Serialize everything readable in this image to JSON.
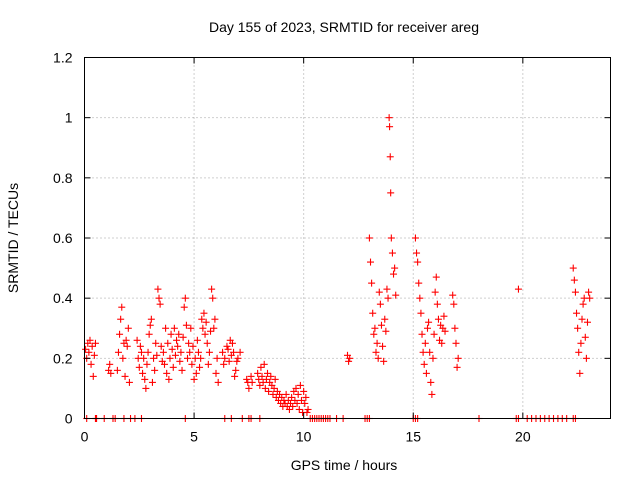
{
  "chart_data": {
    "type": "scatter",
    "title": "Day 155 of 2023, SRMTID for receiver areg",
    "xlabel": "GPS time / hours",
    "ylabel": "SRMTID / TECUs",
    "xlim": [
      0,
      24
    ],
    "ylim": [
      0,
      1.2
    ],
    "xticks": [
      0,
      5,
      10,
      15,
      20
    ],
    "xtick_labels": [
      "0",
      "5",
      "10",
      "15",
      "20"
    ],
    "yticks": [
      0,
      0.2,
      0.4,
      0.6,
      0.8,
      1.0,
      1.2
    ],
    "ytick_labels": [
      "0",
      "0.2",
      "0.4",
      "0.6",
      "0.8",
      "1",
      "1.2"
    ],
    "grid": true,
    "marker": "+",
    "color": "#ff0000",
    "series": [
      {
        "name": "SRMTID",
        "points": [
          [
            0.05,
            0.23
          ],
          [
            0.1,
            0.2
          ],
          [
            0.15,
            0.25
          ],
          [
            0.2,
            0.22
          ],
          [
            0.25,
            0.26
          ],
          [
            0.3,
            0.18
          ],
          [
            0.35,
            0.24
          ],
          [
            0.4,
            0.14
          ],
          [
            0.45,
            0.21
          ],
          [
            0.5,
            0.25
          ],
          [
            1.1,
            0.16
          ],
          [
            1.15,
            0.18
          ],
          [
            1.2,
            0.15
          ],
          [
            1.5,
            0.16
          ],
          [
            1.55,
            0.22
          ],
          [
            1.6,
            0.28
          ],
          [
            1.65,
            0.33
          ],
          [
            1.7,
            0.37
          ],
          [
            1.75,
            0.2
          ],
          [
            1.8,
            0.25
          ],
          [
            1.85,
            0.14
          ],
          [
            1.9,
            0.26
          ],
          [
            1.95,
            0.24
          ],
          [
            2.0,
            0.3
          ],
          [
            2.05,
            0.12
          ],
          [
            2.4,
            0.26
          ],
          [
            2.45,
            0.2
          ],
          [
            2.5,
            0.17
          ],
          [
            2.55,
            0.24
          ],
          [
            2.6,
            0.22
          ],
          [
            2.65,
            0.15
          ],
          [
            2.7,
            0.2
          ],
          [
            2.75,
            0.13
          ],
          [
            2.8,
            0.1
          ],
          [
            2.85,
            0.18
          ],
          [
            2.9,
            0.22
          ],
          [
            2.95,
            0.28
          ],
          [
            3.0,
            0.31
          ],
          [
            3.05,
            0.33
          ],
          [
            3.1,
            0.12
          ],
          [
            3.15,
            0.2
          ],
          [
            3.2,
            0.16
          ],
          [
            3.25,
            0.25
          ],
          [
            3.3,
            0.21
          ],
          [
            3.35,
            0.43
          ],
          [
            3.4,
            0.4
          ],
          [
            3.45,
            0.38
          ],
          [
            3.5,
            0.24
          ],
          [
            3.55,
            0.19
          ],
          [
            3.6,
            0.22
          ],
          [
            3.65,
            0.18
          ],
          [
            3.7,
            0.3
          ],
          [
            3.75,
            0.15
          ],
          [
            3.8,
            0.25
          ],
          [
            3.85,
            0.13
          ],
          [
            3.9,
            0.2
          ],
          [
            3.95,
            0.28
          ],
          [
            4.0,
            0.23
          ],
          [
            4.05,
            0.17
          ],
          [
            4.1,
            0.3
          ],
          [
            4.15,
            0.21
          ],
          [
            4.2,
            0.26
          ],
          [
            4.25,
            0.24
          ],
          [
            4.3,
            0.28
          ],
          [
            4.35,
            0.19
          ],
          [
            4.4,
            0.22
          ],
          [
            4.45,
            0.16
          ],
          [
            4.5,
            0.27
          ],
          [
            4.55,
            0.37
          ],
          [
            4.6,
            0.4
          ],
          [
            4.65,
            0.31
          ],
          [
            4.7,
            0.2
          ],
          [
            4.75,
            0.25
          ],
          [
            4.8,
            0.22
          ],
          [
            4.85,
            0.3
          ],
          [
            4.9,
            0.18
          ],
          [
            4.95,
            0.24
          ],
          [
            5.0,
            0.13
          ],
          [
            5.05,
            0.2
          ],
          [
            5.1,
            0.15
          ],
          [
            5.15,
            0.26
          ],
          [
            5.2,
            0.22
          ],
          [
            5.25,
            0.17
          ],
          [
            5.3,
            0.2
          ],
          [
            5.35,
            0.33
          ],
          [
            5.4,
            0.3
          ],
          [
            5.45,
            0.35
          ],
          [
            5.5,
            0.28
          ],
          [
            5.55,
            0.32
          ],
          [
            5.6,
            0.25
          ],
          [
            5.65,
            0.18
          ],
          [
            5.7,
            0.22
          ],
          [
            5.75,
            0.29
          ],
          [
            5.8,
            0.43
          ],
          [
            5.85,
            0.4
          ],
          [
            5.9,
            0.3
          ],
          [
            5.95,
            0.33
          ],
          [
            6.0,
            0.15
          ],
          [
            6.05,
            0.2
          ],
          [
            6.1,
            0.12
          ],
          [
            6.3,
            0.22
          ],
          [
            6.35,
            0.18
          ],
          [
            6.4,
            0.2
          ],
          [
            6.5,
            0.24
          ],
          [
            6.55,
            0.23
          ],
          [
            6.6,
            0.19
          ],
          [
            6.65,
            0.26
          ],
          [
            6.7,
            0.21
          ],
          [
            6.75,
            0.25
          ],
          [
            6.8,
            0.22
          ],
          [
            6.85,
            0.14
          ],
          [
            6.9,
            0.16
          ],
          [
            6.95,
            0.19
          ],
          [
            7.0,
            0.2
          ],
          [
            7.1,
            0.22
          ],
          [
            7.4,
            0.13
          ],
          [
            7.45,
            0.12
          ],
          [
            7.5,
            0.1
          ],
          [
            7.6,
            0.14
          ],
          [
            7.65,
            0.12
          ],
          [
            7.9,
            0.15
          ],
          [
            7.95,
            0.13
          ],
          [
            8.0,
            0.11
          ],
          [
            8.05,
            0.17
          ],
          [
            8.1,
            0.14
          ],
          [
            8.15,
            0.12
          ],
          [
            8.2,
            0.18
          ],
          [
            8.25,
            0.1
          ],
          [
            8.3,
            0.13
          ],
          [
            8.35,
            0.15
          ],
          [
            8.4,
            0.09
          ],
          [
            8.45,
            0.12
          ],
          [
            8.5,
            0.14
          ],
          [
            8.55,
            0.11
          ],
          [
            8.6,
            0.08
          ],
          [
            8.65,
            0.1
          ],
          [
            8.7,
            0.13
          ],
          [
            8.75,
            0.07
          ],
          [
            8.8,
            0.09
          ],
          [
            8.85,
            0.06
          ],
          [
            8.9,
            0.08
          ],
          [
            8.95,
            0.05
          ],
          [
            9.0,
            0.07
          ],
          [
            9.05,
            0.04
          ],
          [
            9.1,
            0.06
          ],
          [
            9.15,
            0.05
          ],
          [
            9.2,
            0.08
          ],
          [
            9.25,
            0.04
          ],
          [
            9.3,
            0.06
          ],
          [
            9.35,
            0.03
          ],
          [
            9.4,
            0.05
          ],
          [
            9.45,
            0.07
          ],
          [
            9.5,
            0.04
          ],
          [
            9.55,
            0.09
          ],
          [
            9.6,
            0.06
          ],
          [
            9.65,
            0.1
          ],
          [
            9.7,
            0.05
          ],
          [
            9.75,
            0.08
          ],
          [
            9.8,
            0.03
          ],
          [
            9.85,
            0.11
          ],
          [
            9.9,
            0.06
          ],
          [
            9.95,
            0.02
          ],
          [
            10.0,
            0.09
          ],
          [
            10.05,
            0.05
          ],
          [
            10.1,
            0.07
          ],
          [
            10.15,
            0.02
          ],
          [
            10.2,
            0.03
          ],
          [
            12.0,
            0.21
          ],
          [
            12.05,
            0.19
          ],
          [
            12.1,
            0.2
          ],
          [
            13.0,
            0.6
          ],
          [
            13.05,
            0.52
          ],
          [
            13.1,
            0.45
          ],
          [
            13.15,
            0.35
          ],
          [
            13.2,
            0.28
          ],
          [
            13.25,
            0.3
          ],
          [
            13.3,
            0.22
          ],
          [
            13.35,
            0.25
          ],
          [
            13.4,
            0.2
          ],
          [
            13.45,
            0.42
          ],
          [
            13.5,
            0.38
          ],
          [
            13.55,
            0.31
          ],
          [
            13.6,
            0.24
          ],
          [
            13.65,
            0.19
          ],
          [
            13.7,
            0.33
          ],
          [
            13.75,
            0.29
          ],
          [
            13.8,
            0.43
          ],
          [
            13.85,
            0.4
          ],
          [
            13.9,
            1.0
          ],
          [
            13.92,
            0.97
          ],
          [
            13.95,
            0.87
          ],
          [
            13.97,
            0.75
          ],
          [
            14.0,
            0.6
          ],
          [
            14.05,
            0.55
          ],
          [
            14.1,
            0.48
          ],
          [
            14.15,
            0.5
          ],
          [
            14.2,
            0.41
          ],
          [
            15.1,
            0.6
          ],
          [
            15.15,
            0.55
          ],
          [
            15.2,
            0.52
          ],
          [
            15.25,
            0.45
          ],
          [
            15.3,
            0.4
          ],
          [
            15.35,
            0.35
          ],
          [
            15.4,
            0.28
          ],
          [
            15.45,
            0.22
          ],
          [
            15.5,
            0.18
          ],
          [
            15.55,
            0.25
          ],
          [
            15.6,
            0.15
          ],
          [
            15.65,
            0.3
          ],
          [
            15.7,
            0.32
          ],
          [
            15.75,
            0.22
          ],
          [
            15.8,
            0.12
          ],
          [
            15.85,
            0.08
          ],
          [
            15.9,
            0.2
          ],
          [
            15.95,
            0.28
          ],
          [
            16.0,
            0.42
          ],
          [
            16.05,
            0.47
          ],
          [
            16.1,
            0.38
          ],
          [
            16.15,
            0.33
          ],
          [
            16.2,
            0.26
          ],
          [
            16.25,
            0.31
          ],
          [
            16.3,
            0.25
          ],
          [
            16.35,
            0.3
          ],
          [
            16.4,
            0.34
          ],
          [
            16.45,
            0.29
          ],
          [
            16.8,
            0.41
          ],
          [
            16.85,
            0.38
          ],
          [
            16.9,
            0.3
          ],
          [
            16.95,
            0.25
          ],
          [
            17.0,
            0.17
          ],
          [
            17.05,
            0.2
          ],
          [
            19.8,
            0.43
          ],
          [
            22.3,
            0.5
          ],
          [
            22.35,
            0.46
          ],
          [
            22.4,
            0.42
          ],
          [
            22.45,
            0.35
          ],
          [
            22.5,
            0.3
          ],
          [
            22.55,
            0.22
          ],
          [
            22.6,
            0.15
          ],
          [
            22.65,
            0.25
          ],
          [
            22.7,
            0.33
          ],
          [
            22.75,
            0.38
          ],
          [
            22.8,
            0.4
          ],
          [
            22.85,
            0.27
          ],
          [
            22.9,
            0.2
          ],
          [
            22.95,
            0.32
          ],
          [
            23.0,
            0.42
          ],
          [
            23.05,
            0.4
          ]
        ]
      }
    ],
    "zero_points_x": [
      0.1,
      0.5,
      0.55,
      0.9,
      1.3,
      1.4,
      1.8,
      2.1,
      2.3,
      2.6,
      4.6,
      6.4,
      6.7,
      7.2,
      7.5,
      7.6,
      8.0,
      10.3,
      10.4,
      10.5,
      10.6,
      10.7,
      10.8,
      10.9,
      11.0,
      11.1,
      11.2,
      11.5,
      11.8,
      12.8,
      12.9,
      13.0,
      15.0,
      15.1,
      15.2,
      18.0,
      19.7,
      19.8,
      20.2,
      20.4,
      20.6,
      20.8,
      21.0,
      21.2,
      21.4,
      21.6,
      21.8,
      22.0,
      22.3,
      22.4
    ]
  }
}
